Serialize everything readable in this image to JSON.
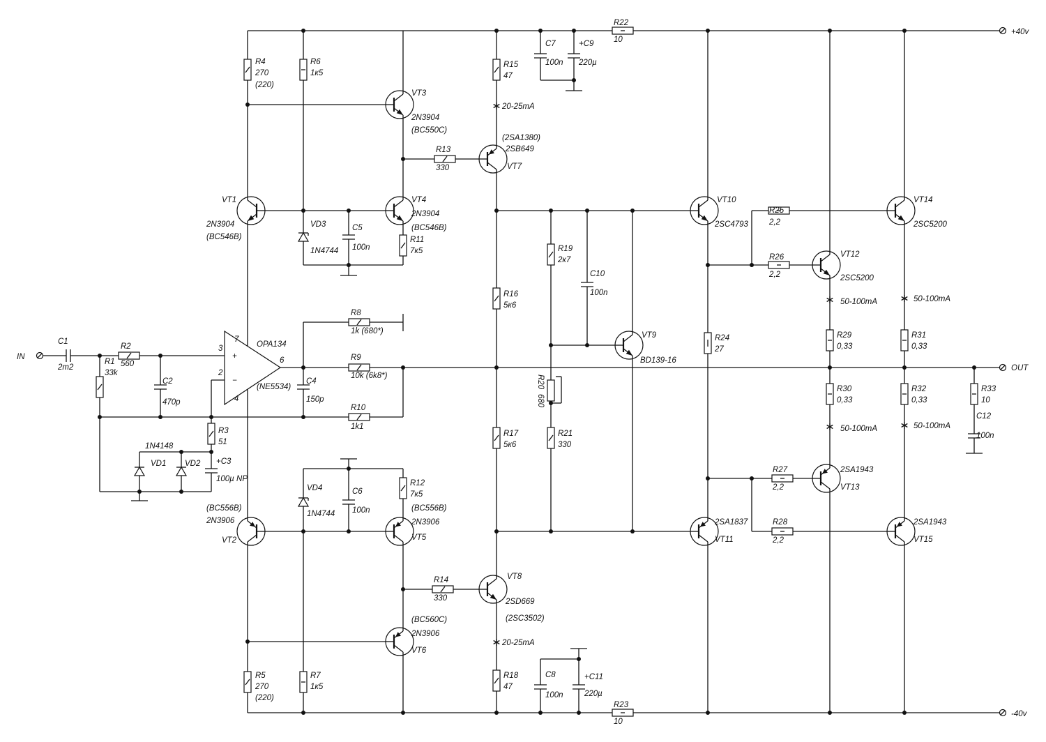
{
  "terminals": {
    "in": "IN",
    "out": "OUT",
    "vpos": "+40v",
    "vneg": "-40v"
  },
  "opamp": {
    "ref": "OPA134",
    "alt": "(NE5534)",
    "pins": {
      "p7": "7",
      "p3": "3",
      "p2": "2",
      "p6": "6",
      "p4": "4",
      "plus": "+",
      "minus": "−"
    }
  },
  "currents": {
    "driver": "20-25mA",
    "output": "50-100mA"
  },
  "diode_pair_type": "1N4148",
  "components": {
    "R1": {
      "ref": "R1",
      "value": "33k"
    },
    "R2": {
      "ref": "R2",
      "value": "560"
    },
    "R3": {
      "ref": "R3",
      "value": "51"
    },
    "R4": {
      "ref": "R4",
      "value": "270",
      "alt": "(220)"
    },
    "R5": {
      "ref": "R5",
      "value": "270",
      "alt": "(220)"
    },
    "R6": {
      "ref": "R6",
      "value": "1к5"
    },
    "R7": {
      "ref": "R7",
      "value": "1к5"
    },
    "R8": {
      "ref": "R8",
      "value": "1k  (680*)"
    },
    "R9": {
      "ref": "R9",
      "value": "10k  (6k8*)"
    },
    "R10": {
      "ref": "R10",
      "value": "1k1"
    },
    "R11": {
      "ref": "R11",
      "value": "7к5"
    },
    "R12": {
      "ref": "R12",
      "value": "7к5"
    },
    "R13": {
      "ref": "R13",
      "value": "330"
    },
    "R14": {
      "ref": "R14",
      "value": "330"
    },
    "R15": {
      "ref": "R15",
      "value": "47"
    },
    "R16": {
      "ref": "R16",
      "value": "5к6"
    },
    "R17": {
      "ref": "R17",
      "value": "5к6"
    },
    "R18": {
      "ref": "R18",
      "value": "47"
    },
    "R19": {
      "ref": "R19",
      "value": "2к7"
    },
    "R20": {
      "ref": "R20",
      "value": "680"
    },
    "R21": {
      "ref": "R21",
      "value": "330"
    },
    "R22": {
      "ref": "R22",
      "value": "10"
    },
    "R23": {
      "ref": "R23",
      "value": "10"
    },
    "R24": {
      "ref": "R24",
      "value": "27"
    },
    "R25": {
      "ref": "R25",
      "value": "2,2"
    },
    "R26": {
      "ref": "R26",
      "value": "2,2"
    },
    "R27": {
      "ref": "R27",
      "value": "2,2"
    },
    "R28": {
      "ref": "R28",
      "value": "2,2"
    },
    "R29": {
      "ref": "R29",
      "value": "0,33"
    },
    "R30": {
      "ref": "R30",
      "value": "0,33"
    },
    "R31": {
      "ref": "R31",
      "value": "0,33"
    },
    "R32": {
      "ref": "R32",
      "value": "0,33"
    },
    "R33": {
      "ref": "R33",
      "value": "10"
    },
    "C1": {
      "ref": "C1",
      "value": "2m2"
    },
    "C2": {
      "ref": "C2",
      "value": "470p"
    },
    "C3": {
      "ref": "+C3",
      "value": "100µ NP"
    },
    "C4": {
      "ref": "C4",
      "value": "150p"
    },
    "C5": {
      "ref": "C5",
      "value": "100n"
    },
    "C6": {
      "ref": "C6",
      "value": "100n"
    },
    "C7": {
      "ref": "C7",
      "value": "100n"
    },
    "C8": {
      "ref": "C8",
      "value": "100n"
    },
    "C9": {
      "ref": "+C9",
      "value": "220µ"
    },
    "C10": {
      "ref": "C10",
      "value": "100n"
    },
    "C11": {
      "ref": "+C11",
      "value": "220µ"
    },
    "C12": {
      "ref": "C12",
      "value": "100n"
    },
    "VD1": {
      "ref": "VD1"
    },
    "VD2": {
      "ref": "VD2"
    },
    "VD3": {
      "ref": "VD3",
      "value": "1N4744"
    },
    "VD4": {
      "ref": "VD4",
      "value": "1N4744"
    },
    "VT1": {
      "ref": "VT1",
      "value": "2N3904",
      "alt": "(BC546B)"
    },
    "VT2": {
      "ref": "VT2",
      "value": "2N3906",
      "alt": "(BC556B)"
    },
    "VT3": {
      "ref": "VT3",
      "value": "2N3904",
      "alt": "(BC550C)"
    },
    "VT4": {
      "ref": "VT4",
      "value": "2N3904",
      "alt": "(BC546B)"
    },
    "VT5": {
      "ref": "VT5",
      "value": "2N3906",
      "alt": "(BC556B)"
    },
    "VT6": {
      "ref": "VT6",
      "value": "2N3906",
      "alt": "(BC560C)"
    },
    "VT7": {
      "ref": "VT7",
      "value": "2SB649",
      "alt": "(2SA1380)"
    },
    "VT8": {
      "ref": "VT8",
      "value": "2SD669",
      "alt": "(2SC3502)"
    },
    "VT9": {
      "ref": "VT9",
      "value": "BD139-16"
    },
    "VT10": {
      "ref": "VT10",
      "value": "2SC4793"
    },
    "VT11": {
      "ref": "VT11",
      "value": "2SA1837"
    },
    "VT12": {
      "ref": "VT12",
      "value": "2SC5200"
    },
    "VT13": {
      "ref": "VT13",
      "value": "2SA1943"
    },
    "VT14": {
      "ref": "VT14",
      "value": "2SC5200"
    },
    "VT15": {
      "ref": "VT15",
      "value": "2SA1943"
    }
  }
}
